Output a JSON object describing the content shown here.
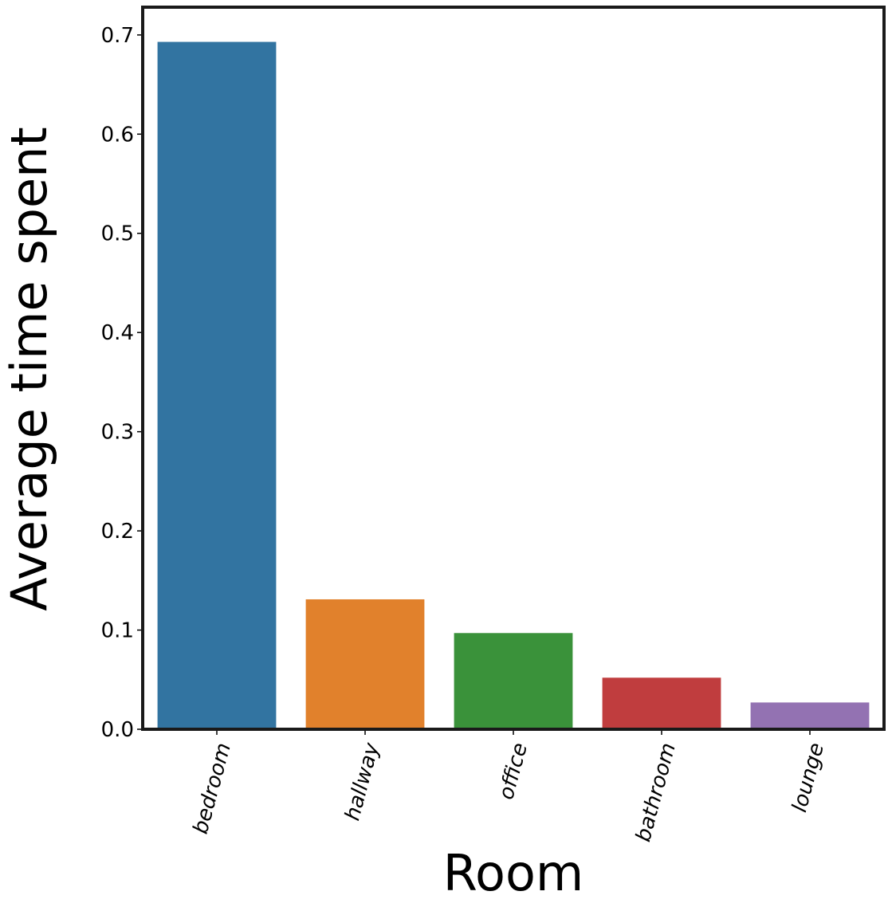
{
  "chart_data": {
    "type": "bar",
    "categories": [
      "bedroom",
      "hallway",
      "office",
      "bathroom",
      "lounge"
    ],
    "values": [
      0.693,
      0.131,
      0.097,
      0.052,
      0.027
    ],
    "colors": [
      "#3274a1",
      "#e1812c",
      "#3a923a",
      "#c03d3e",
      "#9372b2"
    ],
    "title": "",
    "xlabel": "Room",
    "ylabel": "Average time spent",
    "ylim": [
      0,
      0.728
    ],
    "yticks": [
      "0.0",
      "0.1",
      "0.2",
      "0.3",
      "0.4",
      "0.5",
      "0.6",
      "0.7"
    ],
    "grid": false,
    "legend": "none"
  }
}
